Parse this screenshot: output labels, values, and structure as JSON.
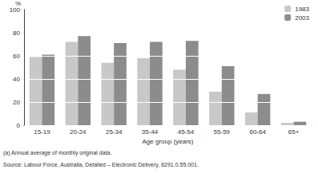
{
  "chart_data": {
    "type": "bar",
    "ylabel": "%",
    "xlabel": "Age group (years)",
    "categories": [
      "15-19",
      "20-24",
      "25-34",
      "35-44",
      "45-54",
      "55-59",
      "60-64",
      "65+"
    ],
    "series": [
      {
        "name": "1983",
        "color": "#c8c8c8",
        "values": [
          59,
          72,
          54,
          58,
          48,
          29,
          11,
          2
        ]
      },
      {
        "name": "2003",
        "color": "#8c8c8c",
        "values": [
          61,
          77,
          71,
          72,
          73,
          51,
          27,
          3
        ]
      }
    ],
    "ylim": [
      0,
      100
    ],
    "yticks": [
      0,
      20,
      40,
      60,
      80,
      100
    ],
    "grid": true,
    "legend": "top-right",
    "annotations": [
      "(a) Annual average of monthly original data.",
      "Source: Labour Force, Australia, Detailed – Electronic Delivery, 6291.0.55.001."
    ]
  }
}
